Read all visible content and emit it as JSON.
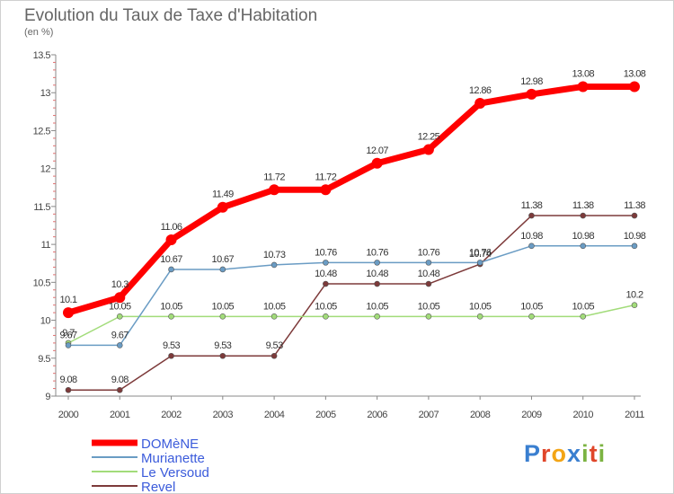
{
  "header": {
    "title": "Evolution du Taux de Taxe d'Habitation",
    "subtitle": "(en %)"
  },
  "logo": {
    "text": "Proxiti"
  },
  "chart_data": {
    "type": "line",
    "title": "Evolution du Taux de Taxe d'Habitation",
    "subtitle": "(en %)",
    "xlabel": "",
    "ylabel": "",
    "x": [
      "2000",
      "2001",
      "2002",
      "2003",
      "2004",
      "2005",
      "2006",
      "2007",
      "2008",
      "2009",
      "2010",
      "2011"
    ],
    "ylim": [
      9,
      13.5
    ],
    "yticks": [
      "9",
      "9.5",
      "10",
      "10.5",
      "11",
      "11.5",
      "12",
      "12.5",
      "13",
      "13.5"
    ],
    "grid": false,
    "legend": "bottom-left",
    "series": [
      {
        "name": "DOMèNE",
        "color": "#ff0000",
        "labels_above": true,
        "values": [
          10.1,
          10.3,
          11.06,
          11.49,
          11.72,
          11.72,
          12.07,
          12.25,
          12.86,
          12.98,
          13.08,
          13.08
        ]
      },
      {
        "name": "Murianette",
        "color": "#6a9cc4",
        "labels_above": true,
        "values": [
          9.67,
          9.67,
          10.67,
          10.67,
          10.73,
          10.76,
          10.76,
          10.76,
          10.76,
          10.98,
          10.98,
          10.98
        ]
      },
      {
        "name": "Le Versoud",
        "color": "#a2dc7a",
        "labels_above": true,
        "values": [
          9.7,
          10.05,
          10.05,
          10.05,
          10.05,
          10.05,
          10.05,
          10.05,
          10.05,
          10.05,
          10.05,
          10.2
        ]
      },
      {
        "name": "Revel",
        "color": "#7d3a3a",
        "labels_above": true,
        "values": [
          9.08,
          9.08,
          9.53,
          9.53,
          9.53,
          10.48,
          10.48,
          10.48,
          10.74,
          11.38,
          11.38,
          11.38
        ]
      }
    ],
    "point_labels": [
      [
        "10.1",
        "10.3",
        "11.06",
        "11.49",
        "11.72",
        "11.72",
        "12.07",
        "12.25",
        "12.86",
        "12.98",
        "13.08",
        "13.08"
      ],
      [
        "9.67",
        "9.67",
        "10.67",
        "10.67",
        "10.73",
        "10.76",
        "10.76",
        "10.76",
        "10.76",
        "10.98",
        "10.98",
        "10.98"
      ],
      [
        "9.7",
        "10.05",
        "10.05",
        "10.05",
        "10.05",
        "10.05",
        "10.05",
        "10.05",
        "10.05",
        "10.05",
        "10.05",
        "10.2"
      ],
      [
        "9.08",
        "9.08",
        "9.53",
        "9.53",
        "9.53",
        "10.48",
        "10.48",
        "10.48",
        "10.74",
        "11.38",
        "11.38",
        "11.38"
      ]
    ]
  }
}
